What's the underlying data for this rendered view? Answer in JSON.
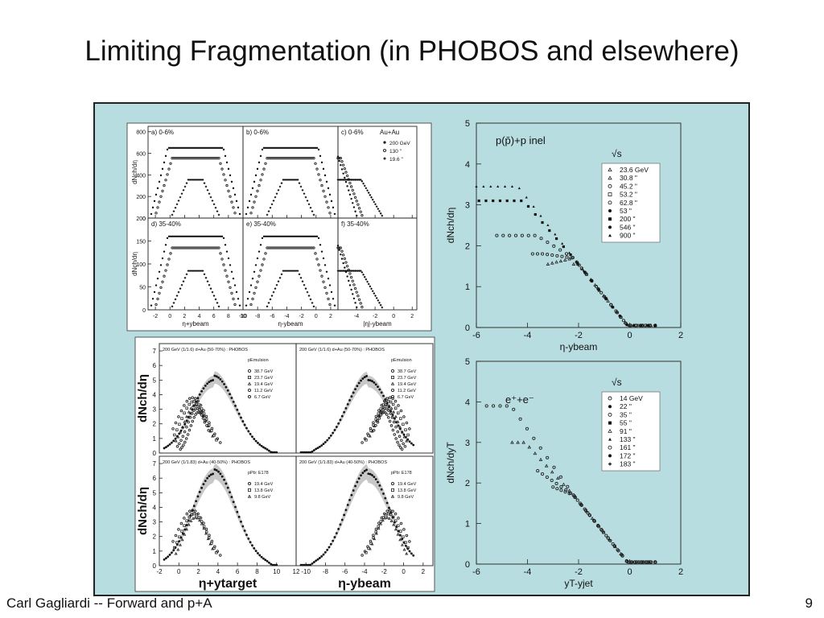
{
  "title": "Limiting Fragmentation (in PHOBOS and elsewhere)",
  "footer": {
    "author": "Carl Gagliardi -- Forward and p+A",
    "page": "9"
  },
  "chart_data": [
    {
      "type": "scatter",
      "id": "au",
      "title": "",
      "ylabel": "dNch/dη",
      "legend": {
        "title": "Au+Au",
        "entries": [
          "200 GeV",
          "130  \"",
          "19.6  \""
        ]
      },
      "panels": [
        {
          "label": "a) 0-6%",
          "xlabel": "η+ybeam",
          "xlim": [
            -3,
            10
          ],
          "ylim": [
            0,
            850
          ],
          "yticks": [
            0,
            200,
            400,
            600,
            800
          ],
          "xticks": [
            -2,
            0,
            2,
            4,
            6,
            8,
            10
          ]
        },
        {
          "label": "b) 0-6%",
          "xlabel": "η-ybeam",
          "xlim": [
            -10,
            3
          ],
          "ylim": [
            0,
            850
          ],
          "xticks": [
            -10,
            -8,
            -6,
            -4,
            -2,
            0,
            2
          ]
        },
        {
          "label": "c) 0-6%",
          "xlabel": "|η|-ybeam",
          "xlim": [
            -6,
            2.5
          ],
          "ylim": [
            0,
            850
          ],
          "xticks": [
            -4,
            -2,
            0,
            2
          ]
        },
        {
          "label": "d) 35-40%",
          "xlabel": "η+ybeam",
          "xlim": [
            -3,
            10
          ],
          "ylim": [
            0,
            200
          ],
          "yticks": [
            0,
            50,
            100,
            150,
            200
          ],
          "xticks": [
            -2,
            0,
            2,
            4,
            6,
            8,
            10
          ]
        },
        {
          "label": "e) 35-40%",
          "xlabel": "η-ybeam",
          "xlim": [
            -10,
            3
          ],
          "ylim": [
            0,
            200
          ],
          "xticks": [
            -10,
            -8,
            -6,
            -4,
            -2,
            0,
            2
          ]
        },
        {
          "label": "f) 35-40%",
          "xlabel": "|η|-ybeam",
          "xlim": [
            -6,
            2.5
          ],
          "ylim": [
            0,
            200
          ],
          "xticks": [
            -4,
            -2,
            0,
            2
          ]
        }
      ],
      "series_plateau_central": [
        650,
        555,
        355
      ],
      "series_plateau_peripheral": [
        160,
        135,
        85
      ]
    },
    {
      "type": "scatter",
      "id": "dau",
      "ylabel": "dNch/dη",
      "panels": [
        {
          "header": "200 GeV (1/1.6) d+Au (50-70%) : PHOBOS",
          "legend_title": "pEmulsion",
          "legend": [
            "38.7 GeV",
            "23.7 GeV",
            "19.4 GeV",
            "11.2 GeV",
            "6.7 GeV"
          ],
          "xlim": [
            -2,
            12
          ],
          "ylim": [
            0,
            7.5
          ],
          "yticks": [
            0,
            1,
            2,
            3,
            4,
            5,
            6,
            7
          ]
        },
        {
          "header": "200 GeV (1/1.6) d+Au (50-70%) : PHOBOS",
          "legend_title": "pEmulsion",
          "legend": [
            "38.7 GeV",
            "23.7 GeV",
            "19.4 GeV",
            "11.2 GeV",
            "6.7 GeV"
          ],
          "xlim": [
            -11,
            3
          ],
          "ylim": [
            0,
            7.5
          ]
        },
        {
          "header": "200 GeV (1/1.83) d+Au (40-50%) : PHOBOS",
          "legend_title": "pPb: E178",
          "legend": [
            "19.4 GeV",
            "13.8 GeV",
            "9.8 GeV"
          ],
          "xlim": [
            -2,
            12
          ],
          "ylim": [
            0,
            7.5
          ],
          "yticks": [
            0,
            1,
            2,
            3,
            4,
            5,
            6,
            7
          ],
          "xticks": [
            -2,
            0,
            2,
            4,
            6,
            8,
            10,
            12
          ],
          "xlabel": "η+ytarget"
        },
        {
          "header": "200 GeV (1/1.83) d+Au (40-50%) : PHOBOS",
          "legend_title": "pPb: E178",
          "legend": [
            "19.4 GeV",
            "13.8 GeV",
            "9.8 GeV"
          ],
          "xlim": [
            -11,
            3
          ],
          "ylim": [
            0,
            7.5
          ],
          "xticks": [
            -10,
            -8,
            -6,
            -4,
            -2,
            0,
            2
          ],
          "xlabel": "η-ybeam"
        }
      ]
    },
    {
      "type": "scatter",
      "id": "pp",
      "title": "p(p̄)+p inel",
      "xlabel": "η-ybeam",
      "ylabel": "dNch/dη",
      "xlim": [
        -6,
        2
      ],
      "ylim": [
        0,
        5
      ],
      "xticks": [
        -6,
        -4,
        -2,
        0,
        2
      ],
      "yticks": [
        0,
        1,
        2,
        3,
        4,
        5
      ],
      "legend": {
        "title": "√s",
        "entries": [
          "23.6 GeV",
          "30.8  \"",
          "45.2  \"",
          "53.2  \"",
          "62.8  \"",
          "53  \"",
          "200  \"",
          "546  \"",
          "900  \""
        ]
      },
      "plateaus": [
        {
          "energy": "23.6 GeV",
          "height": 1.55,
          "start": -3.2
        },
        {
          "energy": "53",
          "height": 1.8,
          "start": -3.8
        },
        {
          "energy": "200",
          "height": 2.25,
          "start": -5.2
        },
        {
          "energy": "546",
          "height": 3.1,
          "start": -5.9
        },
        {
          "energy": "900",
          "height": 3.45,
          "start": -6.0
        }
      ]
    },
    {
      "type": "scatter",
      "id": "ee",
      "title": "e⁺+e⁻",
      "xlabel": "yT-yjet",
      "ylabel": "dNch/dyT",
      "xlim": [
        -6,
        2
      ],
      "ylim": [
        0,
        5
      ],
      "xticks": [
        -6,
        -4,
        -2,
        0,
        2
      ],
      "yticks": [
        0,
        1,
        2,
        3,
        4,
        5
      ],
      "legend": {
        "title": "√s",
        "entries": [
          "14 GeV",
          "22  \"",
          "35  \"",
          "55  \"",
          "91  \"",
          "133  \"",
          "161  \"",
          "172  \"",
          "183  \""
        ]
      },
      "plateaus": [
        {
          "energy": "14 GeV",
          "height": 1.9,
          "start": -3.0
        },
        {
          "energy": "35",
          "height": 2.3,
          "start": -3.6
        },
        {
          "energy": "91",
          "height": 3.0,
          "start": -4.6
        },
        {
          "energy": "183",
          "height": 3.9,
          "start": -5.6
        }
      ]
    }
  ]
}
